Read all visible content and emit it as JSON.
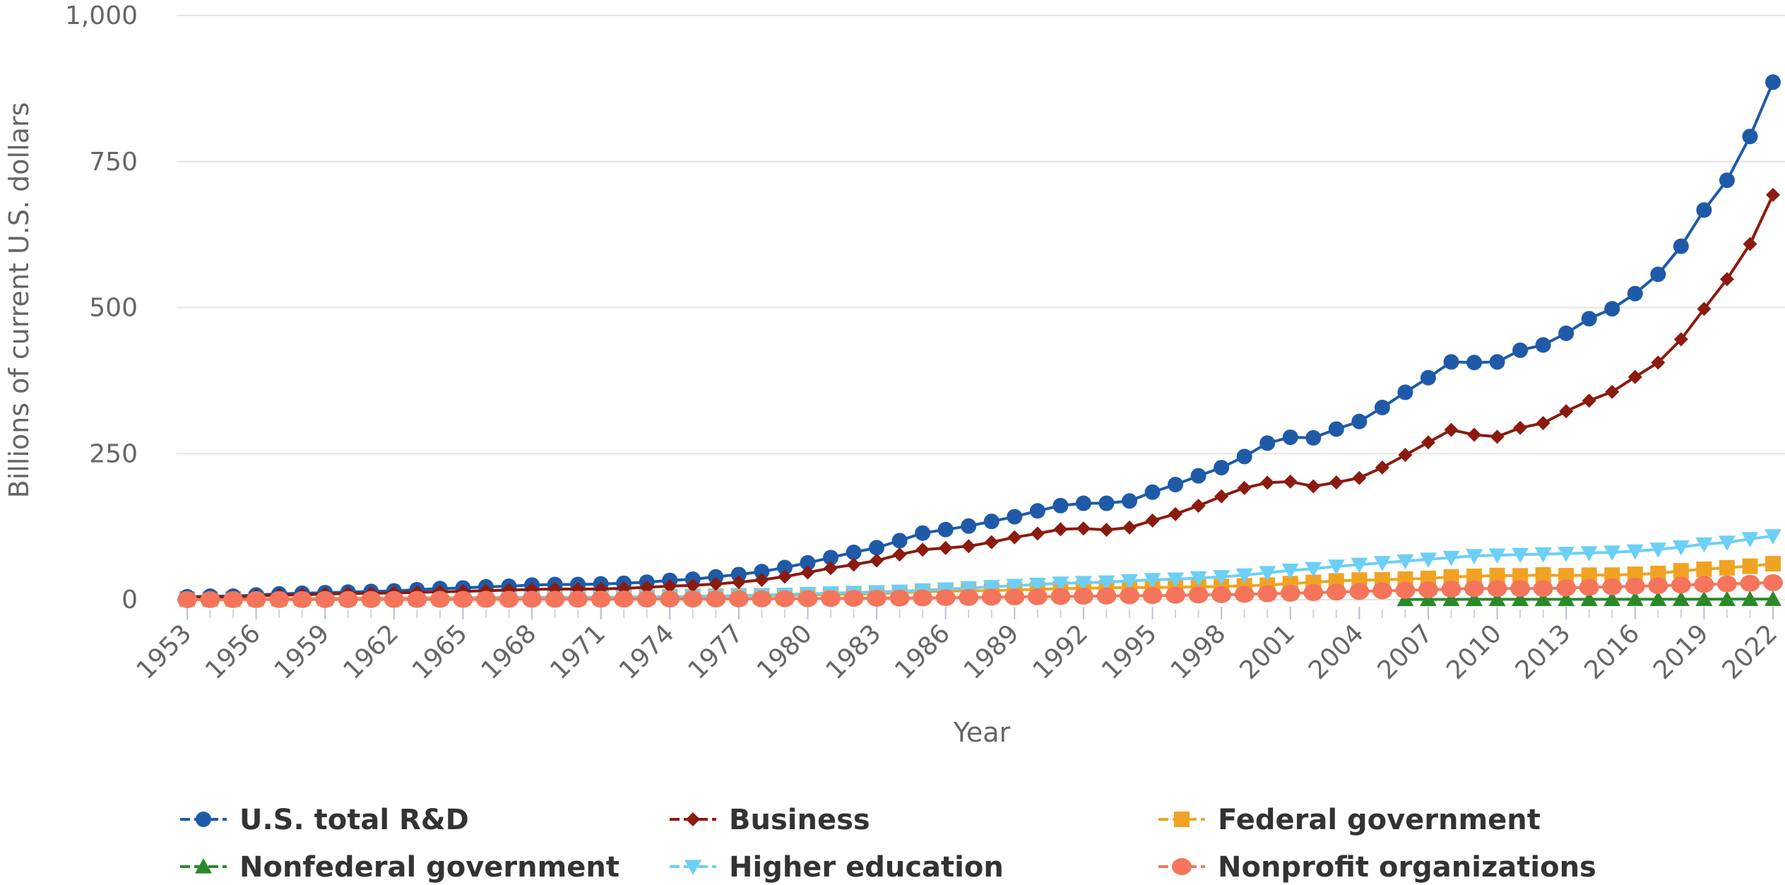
{
  "chart_data": {
    "type": "line",
    "xlabel": "Year",
    "ylabel": "Billions of current U.S. dollars",
    "ylim": [
      0,
      1000
    ],
    "yticks": [
      "0",
      "250",
      "500",
      "750",
      "1,000"
    ],
    "xlim": [
      1953,
      2022
    ],
    "xticks": [
      "1953",
      "1956",
      "1959",
      "1962",
      "1965",
      "1968",
      "1971",
      "1974",
      "1977",
      "1980",
      "1983",
      "1986",
      "1989",
      "1992",
      "1995",
      "1998",
      "2001",
      "2004",
      "2007",
      "2010",
      "2013",
      "2016",
      "2019",
      "2022"
    ],
    "grid": "horizontal",
    "legend_position": "bottom",
    "x": [
      1953,
      1954,
      1955,
      1956,
      1957,
      1958,
      1959,
      1960,
      1961,
      1962,
      1963,
      1964,
      1965,
      1966,
      1967,
      1968,
      1969,
      1970,
      1971,
      1972,
      1973,
      1974,
      1975,
      1976,
      1977,
      1978,
      1979,
      1980,
      1981,
      1982,
      1983,
      1984,
      1985,
      1986,
      1987,
      1988,
      1989,
      1990,
      1991,
      1992,
      1993,
      1994,
      1995,
      1996,
      1997,
      1998,
      1999,
      2000,
      2001,
      2002,
      2003,
      2004,
      2005,
      2006,
      2007,
      2008,
      2009,
      2010,
      2011,
      2012,
      2013,
      2014,
      2015,
      2016,
      2017,
      2018,
      2019,
      2020,
      2021,
      2022
    ],
    "series": [
      {
        "name": "U.S. total R&D",
        "color": "#1f5aa8",
        "marker": "circle",
        "values": [
          5,
          6,
          6,
          8,
          10,
          11,
          12,
          13,
          14,
          15,
          17,
          19,
          20,
          22,
          23,
          25,
          26,
          26,
          27,
          28,
          30,
          33,
          35,
          39,
          43,
          48,
          55,
          63,
          72,
          81,
          89,
          101,
          114,
          120,
          126,
          134,
          142,
          152,
          161,
          165,
          165,
          169,
          184,
          197,
          212,
          226,
          245,
          268,
          278,
          277,
          292,
          305,
          329,
          355,
          380,
          407,
          406,
          407,
          427,
          436,
          456,
          481,
          498,
          524,
          557,
          605,
          667,
          718,
          793,
          886
        ]
      },
      {
        "name": "Business",
        "color": "#8c1a0f",
        "marker": "diamond",
        "values": [
          3.6,
          4,
          4.3,
          6.4,
          7.7,
          8.4,
          9.5,
          10.5,
          10.9,
          11.5,
          12.4,
          13.5,
          14.2,
          15.5,
          16.4,
          17.4,
          18.3,
          18.1,
          18.3,
          19.3,
          21.1,
          23.2,
          24.3,
          26.9,
          30,
          33.9,
          39.4,
          46.5,
          54,
          59.9,
          66.9,
          77.3,
          85.5,
          88.4,
          91.4,
          98.4,
          106.7,
          113.2,
          120.5,
          121.8,
          119.5,
          123.5,
          135.4,
          146.5,
          160.7,
          176.8,
          191.2,
          200.2,
          202.1,
          193.9,
          200.7,
          208.3,
          226.2,
          247.7,
          269.3,
          290.7,
          282.4,
          278.9,
          294.1,
          302.3,
          322.5,
          340.7,
          355.8,
          381.2,
          405.9,
          445.7,
          497.8,
          548.6,
          608.8,
          693
        ]
      },
      {
        "name": "Federal government",
        "color": "#f0a323",
        "marker": "square",
        "values": [
          1,
          1.1,
          1.2,
          1.4,
          1.6,
          1.8,
          2.1,
          2.3,
          2.6,
          2.8,
          3.1,
          3.3,
          3.5,
          3.6,
          3.7,
          3.8,
          3.9,
          4,
          4.2,
          4.4,
          4.6,
          5,
          5.3,
          5.9,
          6.4,
          6.7,
          7.1,
          7.8,
          8.7,
          9.5,
          10.6,
          11.9,
          13.5,
          14.3,
          15.2,
          15.4,
          16.7,
          17.7,
          18.7,
          19.7,
          20.3,
          20.7,
          21,
          21.3,
          21.8,
          22.5,
          23.7,
          24.9,
          27.4,
          29.6,
          32.1,
          33.6,
          33.9,
          35.2,
          36.3,
          38.9,
          39.9,
          41.4,
          40.7,
          42.3,
          41,
          41.9,
          42,
          43.5,
          44.8,
          49.4,
          52,
          54.6,
          57.3,
          61.5
        ]
      },
      {
        "name": "Nonfederal government",
        "color": "#2a8a2a",
        "marker": "triangle-up",
        "values": [
          null,
          null,
          null,
          null,
          null,
          null,
          null,
          null,
          null,
          null,
          null,
          null,
          null,
          null,
          null,
          null,
          null,
          null,
          null,
          null,
          null,
          null,
          null,
          null,
          null,
          null,
          null,
          null,
          null,
          null,
          null,
          null,
          null,
          null,
          null,
          null,
          null,
          null,
          null,
          null,
          null,
          null,
          null,
          null,
          null,
          null,
          null,
          null,
          null,
          null,
          null,
          null,
          null,
          0.4,
          0.5,
          0.5,
          0.6,
          0.6,
          0.6,
          0.6,
          0.6,
          0.6,
          0.6,
          0.7,
          0.7,
          0.7,
          0.7,
          0.8,
          0.8,
          0.8
        ]
      },
      {
        "name": "Higher education",
        "color": "#6ccff6",
        "marker": "triangle-down",
        "values": [
          0.3,
          0.4,
          0.4,
          0.5,
          0.6,
          0.7,
          0.8,
          1,
          1.2,
          1.4,
          1.7,
          2.1,
          2.4,
          2.7,
          3,
          3.3,
          3.5,
          3.8,
          4,
          4.3,
          4.6,
          5,
          5.6,
          6.2,
          6.9,
          7.8,
          8.8,
          10.1,
          11.2,
          12.1,
          13.2,
          14.3,
          16.3,
          18,
          20,
          22,
          24,
          26,
          28,
          29,
          30,
          32,
          34,
          35,
          37,
          39,
          42,
          46,
          50,
          53,
          57,
          60,
          63,
          66,
          69,
          72,
          75,
          76,
          77,
          78,
          79,
          80,
          81,
          83,
          86,
          90,
          95,
          98,
          104,
          109
        ]
      },
      {
        "name": "Nonprofit organizations",
        "color": "#f4755b",
        "marker": "circle-large",
        "values": [
          0.1,
          0.1,
          0.1,
          0.2,
          0.2,
          0.2,
          0.3,
          0.3,
          0.3,
          0.4,
          0.4,
          0.5,
          0.5,
          0.6,
          0.6,
          0.7,
          0.7,
          0.8,
          0.8,
          0.9,
          1,
          1.1,
          1.1,
          1.2,
          1.3,
          1.4,
          1.6,
          1.8,
          2,
          2.2,
          2.4,
          2.7,
          3,
          3.4,
          3.8,
          4.2,
          4.6,
          5,
          5.4,
          5.8,
          6.2,
          6.6,
          7,
          7.5,
          8,
          8.5,
          9,
          10,
          11,
          12,
          13,
          14,
          15,
          16,
          17,
          18,
          19,
          19,
          19,
          19,
          20,
          21,
          22,
          23,
          24,
          25,
          26,
          27,
          28,
          29
        ]
      }
    ]
  }
}
